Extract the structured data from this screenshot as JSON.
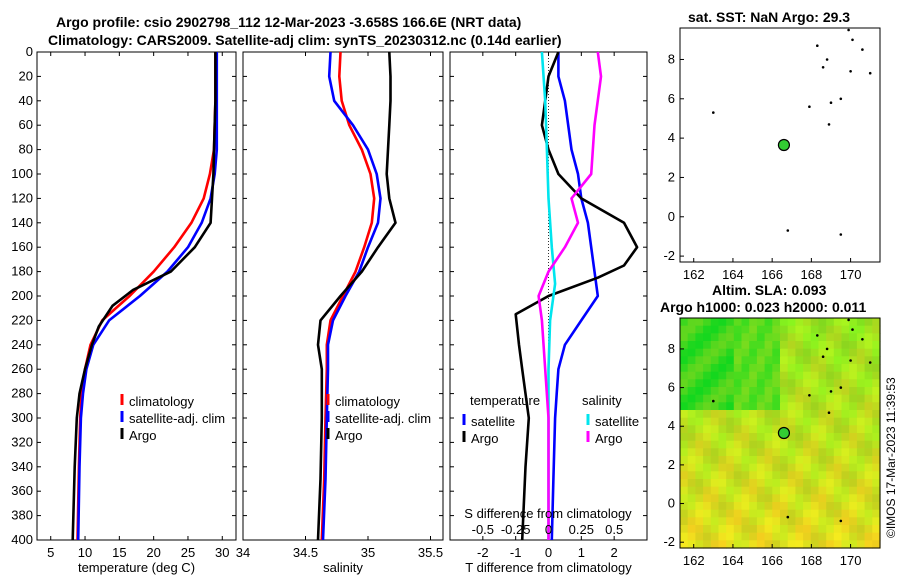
{
  "header": {
    "title_line1": "Argo profile: csio 2902798_112 12-Mar-2023 -3.658S 166.6E (NRT data)",
    "title_line2": "Climatology: CARS2009. Satellite-adj clim: synTS_20230312.nc (0.14d earlier)"
  },
  "map_top": {
    "title": "sat. SST: NaN Argo: 29.3"
  },
  "map_bottom": {
    "title_line1": "Altim. SLA: 0.093",
    "title_line2": "Argo h1000: 0.023 h2000: 0.011"
  },
  "side_text": "©IMOS 17-Mar-2023 11:39:53",
  "colors": {
    "argo": "#000000",
    "climatology": "#ff0000",
    "satellite": "#0000ff",
    "temp_sat": "#0000ff",
    "sal_sat": "#00e5ee",
    "sal_argo": "#ff00ff"
  },
  "chart_data": [
    {
      "type": "line",
      "name": "temperature",
      "xlabel": "temperature (deg C)",
      "ylabel": "",
      "xlim": [
        3,
        32
      ],
      "ylim": [
        400,
        0
      ],
      "xticks": [
        5,
        10,
        15,
        20,
        25,
        30
      ],
      "yticks": [
        0,
        20,
        40,
        60,
        80,
        100,
        120,
        140,
        160,
        180,
        200,
        220,
        240,
        260,
        280,
        300,
        320,
        340,
        360,
        380,
        400
      ],
      "legend": [
        "climatology",
        "satellite-adj. clim",
        "Argo"
      ],
      "series": [
        {
          "name": "climatology",
          "color": "#ff0000",
          "points": [
            [
              29.0,
              0
            ],
            [
              29.0,
              40
            ],
            [
              28.8,
              80
            ],
            [
              28.2,
              100
            ],
            [
              27.3,
              120
            ],
            [
              25.5,
              140
            ],
            [
              23.0,
              160
            ],
            [
              20.0,
              180
            ],
            [
              16.5,
              200
            ],
            [
              12.5,
              220
            ],
            [
              10.8,
              240
            ],
            [
              10.0,
              260
            ],
            [
              9.5,
              280
            ],
            [
              9.3,
              300
            ],
            [
              9.1,
              340
            ],
            [
              8.9,
              400
            ]
          ]
        },
        {
          "name": "satellite-adj. clim",
          "color": "#0000ff",
          "points": [
            [
              29.2,
              0
            ],
            [
              29.2,
              40
            ],
            [
              29.2,
              80
            ],
            [
              28.9,
              100
            ],
            [
              28.3,
              120
            ],
            [
              27.0,
              140
            ],
            [
              25.0,
              160
            ],
            [
              22.0,
              180
            ],
            [
              18.0,
              200
            ],
            [
              13.5,
              220
            ],
            [
              11.2,
              240
            ],
            [
              10.2,
              260
            ],
            [
              9.7,
              280
            ],
            [
              9.4,
              300
            ],
            [
              9.2,
              340
            ],
            [
              9.0,
              400
            ]
          ]
        },
        {
          "name": "Argo",
          "color": "#000000",
          "points": [
            [
              29.0,
              0
            ],
            [
              29.0,
              40
            ],
            [
              28.8,
              80
            ],
            [
              28.7,
              100
            ],
            [
              28.5,
              120
            ],
            [
              28.3,
              140
            ],
            [
              26.0,
              160
            ],
            [
              22.5,
              180
            ],
            [
              17.0,
              195
            ],
            [
              14.0,
              208
            ],
            [
              12.0,
              225
            ],
            [
              11.0,
              240
            ],
            [
              10.0,
              260
            ],
            [
              9.2,
              280
            ],
            [
              8.8,
              300
            ],
            [
              8.5,
              340
            ],
            [
              8.2,
              400
            ]
          ]
        }
      ]
    },
    {
      "type": "line",
      "name": "salinity",
      "xlabel": "salinity",
      "ylabel": "",
      "xlim": [
        34,
        35.6
      ],
      "ylim": [
        400,
        0
      ],
      "xticks": [
        34,
        34.5,
        35,
        35.5
      ],
      "xticklabels": [
        "34",
        "34.5",
        "35",
        "35.5"
      ],
      "legend": [
        "climatology",
        "satellite-adj. clim",
        "Argo"
      ],
      "series": [
        {
          "name": "climatology",
          "color": "#ff0000",
          "points": [
            [
              34.78,
              0
            ],
            [
              34.77,
              20
            ],
            [
              34.79,
              40
            ],
            [
              34.85,
              60
            ],
            [
              34.95,
              80
            ],
            [
              35.02,
              100
            ],
            [
              35.05,
              120
            ],
            [
              35.03,
              140
            ],
            [
              34.97,
              160
            ],
            [
              34.9,
              180
            ],
            [
              34.8,
              200
            ],
            [
              34.7,
              220
            ],
            [
              34.67,
              240
            ],
            [
              34.67,
              260
            ],
            [
              34.66,
              300
            ],
            [
              34.65,
              350
            ],
            [
              34.63,
              400
            ]
          ]
        },
        {
          "name": "satellite-adj. clim",
          "color": "#0000ff",
          "points": [
            [
              34.7,
              0
            ],
            [
              34.69,
              20
            ],
            [
              34.73,
              40
            ],
            [
              34.88,
              60
            ],
            [
              35.0,
              80
            ],
            [
              35.07,
              100
            ],
            [
              35.1,
              120
            ],
            [
              35.08,
              140
            ],
            [
              35.0,
              160
            ],
            [
              34.93,
              180
            ],
            [
              34.82,
              200
            ],
            [
              34.72,
              220
            ],
            [
              34.68,
              240
            ],
            [
              34.68,
              260
            ],
            [
              34.67,
              300
            ],
            [
              34.66,
              350
            ],
            [
              34.64,
              400
            ]
          ]
        },
        {
          "name": "Argo",
          "color": "#000000",
          "points": [
            [
              35.17,
              0
            ],
            [
              35.18,
              20
            ],
            [
              35.18,
              40
            ],
            [
              35.17,
              60
            ],
            [
              35.16,
              80
            ],
            [
              35.15,
              100
            ],
            [
              35.17,
              120
            ],
            [
              35.22,
              140
            ],
            [
              35.08,
              160
            ],
            [
              34.95,
              180
            ],
            [
              34.78,
              200
            ],
            [
              34.62,
              220
            ],
            [
              34.6,
              240
            ],
            [
              34.63,
              260
            ],
            [
              34.63,
              300
            ],
            [
              34.62,
              350
            ],
            [
              34.6,
              400
            ]
          ]
        }
      ]
    },
    {
      "type": "line",
      "name": "differences",
      "xlabel": "T difference from climatology",
      "xlabel_top": "S difference from climatology",
      "xlim": [
        -3,
        3
      ],
      "ylim": [
        400,
        0
      ],
      "xticks": [
        -2,
        -1,
        0,
        1,
        2
      ],
      "s_xticklabels": [
        "-0.5",
        "-0.25",
        "0",
        "0.25",
        "0.5"
      ],
      "legend_titles": [
        "temperature",
        "salinity"
      ],
      "legend": [
        "satellite",
        "Argo",
        "satellite",
        "Argo"
      ],
      "series": [
        {
          "name": "T satellite",
          "color": "#0000ff",
          "points": [
            [
              0.3,
              0
            ],
            [
              0.3,
              20
            ],
            [
              0.5,
              40
            ],
            [
              0.6,
              60
            ],
            [
              0.7,
              80
            ],
            [
              0.9,
              100
            ],
            [
              1.0,
              120
            ],
            [
              1.2,
              140
            ],
            [
              1.3,
              160
            ],
            [
              1.4,
              180
            ],
            [
              1.5,
              200
            ],
            [
              1.0,
              220
            ],
            [
              0.5,
              240
            ],
            [
              0.3,
              260
            ],
            [
              0.25,
              280
            ],
            [
              0.2,
              300
            ],
            [
              0.15,
              350
            ],
            [
              0.1,
              400
            ]
          ]
        },
        {
          "name": "T Argo",
          "color": "#000000",
          "points": [
            [
              0.3,
              0
            ],
            [
              0.0,
              20
            ],
            [
              -0.2,
              60
            ],
            [
              0.0,
              80
            ],
            [
              0.3,
              100
            ],
            [
              1.0,
              120
            ],
            [
              2.3,
              140
            ],
            [
              2.7,
              160
            ],
            [
              2.3,
              175
            ],
            [
              1.5,
              185
            ],
            [
              0.0,
              200
            ],
            [
              -1.0,
              215
            ],
            [
              -0.9,
              240
            ],
            [
              -0.8,
              260
            ],
            [
              -0.6,
              300
            ],
            [
              -0.7,
              340
            ],
            [
              -0.8,
              400
            ]
          ]
        },
        {
          "name": "S satellite",
          "color": "#00e5ee",
          "points": [
            [
              -0.2,
              0
            ],
            [
              -0.1,
              40
            ],
            [
              -0.05,
              80
            ],
            [
              0.0,
              120
            ],
            [
              0.1,
              160
            ],
            [
              0.2,
              190
            ],
            [
              0.05,
              220
            ],
            [
              0.0,
              260
            ],
            [
              0.0,
              300
            ],
            [
              0.0,
              400
            ]
          ]
        },
        {
          "name": "S Argo",
          "color": "#ff00ff",
          "points": [
            [
              1.5,
              0
            ],
            [
              1.6,
              20
            ],
            [
              1.4,
              60
            ],
            [
              1.3,
              100
            ],
            [
              0.7,
              120
            ],
            [
              0.9,
              140
            ],
            [
              0.5,
              160
            ],
            [
              0.0,
              180
            ],
            [
              -0.3,
              200
            ],
            [
              -0.2,
              220
            ],
            [
              -0.1,
              260
            ],
            [
              0.0,
              300
            ],
            [
              0.0,
              400
            ]
          ]
        }
      ]
    },
    {
      "type": "scatter",
      "name": "map_sst",
      "xlim": [
        161.3,
        171.5
      ],
      "ylim": [
        -2.3,
        9.6
      ],
      "xticks": [
        162,
        164,
        166,
        168,
        170
      ],
      "yticks": [
        -2,
        0,
        2,
        4,
        6,
        8
      ],
      "float_position": [
        166.6,
        3.65
      ],
      "coast_points": [
        [
          163.0,
          5.3
        ],
        [
          166.8,
          -0.7
        ],
        [
          169.5,
          -0.9
        ],
        [
          169.9,
          9.5
        ],
        [
          170.1,
          9.0
        ],
        [
          170.0,
          7.4
        ],
        [
          170.6,
          8.5
        ],
        [
          171.0,
          7.3
        ],
        [
          168.3,
          8.7
        ],
        [
          168.6,
          7.6
        ],
        [
          168.8,
          8.0
        ],
        [
          169.5,
          6.0
        ],
        [
          169.0,
          5.8
        ],
        [
          168.9,
          4.7
        ],
        [
          167.9,
          5.6
        ]
      ]
    },
    {
      "type": "heatmap",
      "name": "map_sla",
      "xlim": [
        161.3,
        171.5
      ],
      "ylim": [
        -2.3,
        9.6
      ],
      "xticks": [
        162,
        164,
        166,
        168,
        170
      ],
      "yticks": [
        -2,
        0,
        2,
        4,
        6,
        8
      ],
      "float_position": [
        166.6,
        3.65
      ],
      "coast_points": [
        [
          163.0,
          5.3
        ],
        [
          166.8,
          -0.7
        ],
        [
          169.5,
          -0.9
        ],
        [
          169.9,
          9.5
        ],
        [
          170.1,
          9.0
        ],
        [
          170.0,
          7.4
        ],
        [
          170.6,
          8.5
        ],
        [
          171.0,
          7.3
        ],
        [
          168.3,
          8.7
        ],
        [
          168.6,
          7.6
        ],
        [
          168.8,
          8.0
        ],
        [
          169.5,
          6.0
        ],
        [
          169.0,
          5.8
        ],
        [
          168.9,
          4.7
        ],
        [
          167.9,
          5.6
        ]
      ]
    }
  ]
}
